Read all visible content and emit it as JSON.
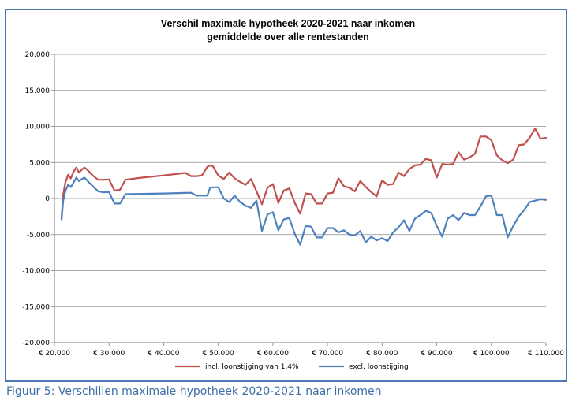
{
  "caption": "Figuur 5: Verschillen maximale hypotheek 2020-2021 naar inkomen",
  "chart_data": {
    "type": "line",
    "title": "Verschil maximale hypotheek 2020-2021 naar inkomen",
    "subtitle": "gemiddelde over alle rentestanden",
    "xlabel": "",
    "ylabel": "",
    "xlim": [
      20000,
      110000
    ],
    "ylim": [
      -20000,
      20000
    ],
    "x_ticks": [
      20000,
      30000,
      40000,
      50000,
      60000,
      70000,
      80000,
      90000,
      100000,
      110000
    ],
    "x_tick_labels": [
      "€ 20.000",
      "€ 30.000",
      "€ 40.000",
      "€ 50.000",
      "€ 60.000",
      "€ 70.000",
      "€ 80.000",
      "€ 90.000",
      "€ 100.000",
      "€ 110.000"
    ],
    "y_ticks": [
      20000,
      15000,
      10000,
      5000,
      0,
      -5000,
      -10000,
      -15000,
      -20000
    ],
    "y_tick_labels": [
      "20.000",
      "15.000",
      "10.000",
      "5.000",
      "0",
      "-5.000",
      "-10.000",
      "-15.000",
      "-20.000"
    ],
    "grid": true,
    "legend_position": "bottom",
    "series": [
      {
        "name": "incl. loonstijging van 1,4%",
        "color": "#c0504d",
        "x": [
          21300,
          21600,
          22000,
          22500,
          23000,
          23500,
          24000,
          24500,
          25000,
          25500,
          26000,
          26500,
          27000,
          28000,
          29000,
          30000,
          31000,
          32000,
          33000,
          36000,
          40000,
          44000,
          45000,
          46000,
          47000,
          48000,
          48500,
          49000,
          50000,
          51000,
          52000,
          53000,
          54000,
          55000,
          56000,
          57000,
          58000,
          59000,
          60000,
          61000,
          62000,
          63000,
          64000,
          65000,
          66000,
          67000,
          68000,
          69000,
          70000,
          71000,
          72000,
          73000,
          74000,
          75000,
          76000,
          77000,
          78000,
          79000,
          80000,
          81000,
          82000,
          83000,
          84000,
          85000,
          86000,
          87000,
          88000,
          89000,
          90000,
          91000,
          92000,
          93000,
          94000,
          95000,
          96000,
          97000,
          98000,
          99000,
          100000,
          101000,
          102000,
          103000,
          104000,
          105000,
          106000,
          107000,
          108000,
          109000,
          110000
        ],
        "y": [
          -2800,
          500,
          2200,
          3300,
          2800,
          3700,
          4300,
          3600,
          4000,
          4300,
          4000,
          3600,
          3200,
          2600,
          2600,
          2650,
          1100,
          1200,
          2600,
          2900,
          3200,
          3550,
          3100,
          3100,
          3200,
          4400,
          4600,
          4500,
          3200,
          2700,
          3600,
          2800,
          2300,
          1900,
          2700,
          1000,
          -800,
          1500,
          2000,
          -600,
          1100,
          1400,
          -600,
          -2100,
          700,
          600,
          -700,
          -700,
          700,
          800,
          2800,
          1700,
          1500,
          1000,
          2400,
          1600,
          900,
          300,
          2500,
          1900,
          2000,
          3600,
          3100,
          4100,
          4600,
          4700,
          5500,
          5300,
          2900,
          4800,
          4700,
          4800,
          6400,
          5400,
          5700,
          6200,
          8600,
          8600,
          8100,
          6000,
          5300,
          4900,
          5400,
          7400,
          7500,
          8400,
          9700,
          8300,
          8400
        ]
      },
      {
        "name": "excl. loonstijging",
        "color": "#4f81bd",
        "x": [
          21300,
          21600,
          22000,
          22500,
          23000,
          23500,
          24000,
          24500,
          25000,
          25500,
          26000,
          26500,
          27000,
          28000,
          29000,
          30000,
          31000,
          32000,
          33000,
          36000,
          40000,
          44000,
          45000,
          46000,
          47000,
          48000,
          48500,
          49000,
          50000,
          51000,
          52000,
          53000,
          54000,
          55000,
          56000,
          57000,
          58000,
          59000,
          60000,
          61000,
          62000,
          63000,
          64000,
          65000,
          66000,
          67000,
          68000,
          69000,
          70000,
          71000,
          72000,
          73000,
          74000,
          75000,
          76000,
          77000,
          78000,
          79000,
          80000,
          81000,
          82000,
          83000,
          84000,
          85000,
          86000,
          87000,
          88000,
          89000,
          90000,
          91000,
          92000,
          93000,
          94000,
          95000,
          96000,
          97000,
          98000,
          99000,
          100000,
          101000,
          102000,
          103000,
          104000,
          105000,
          106000,
          107000,
          108000,
          109000,
          110000
        ],
        "y": [
          -2900,
          -300,
          1000,
          1900,
          1600,
          2200,
          2900,
          2400,
          2700,
          2900,
          2500,
          2100,
          1700,
          1000,
          850,
          900,
          -700,
          -700,
          600,
          650,
          700,
          780,
          800,
          400,
          400,
          400,
          1500,
          1550,
          1550,
          0,
          -500,
          400,
          -500,
          -1000,
          -1300,
          -300,
          -4500,
          -2200,
          -1900,
          -4400,
          -2900,
          -2700,
          -4900,
          -6400,
          -3800,
          -3900,
          -5400,
          -5400,
          -4100,
          -4100,
          -4700,
          -4400,
          -5000,
          -5100,
          -4500,
          -6100,
          -5300,
          -5800,
          -5500,
          -5900,
          -4700,
          -4000,
          -3000,
          -4500,
          -2800,
          -2300,
          -1700,
          -2000,
          -3800,
          -5300,
          -2800,
          -2300,
          -3000,
          -2000,
          -2300,
          -2300,
          -1100,
          300,
          400,
          -2300,
          -2300,
          -5400,
          -3800,
          -2500,
          -1600,
          -500,
          -300,
          -100,
          -200
        ]
      }
    ]
  }
}
